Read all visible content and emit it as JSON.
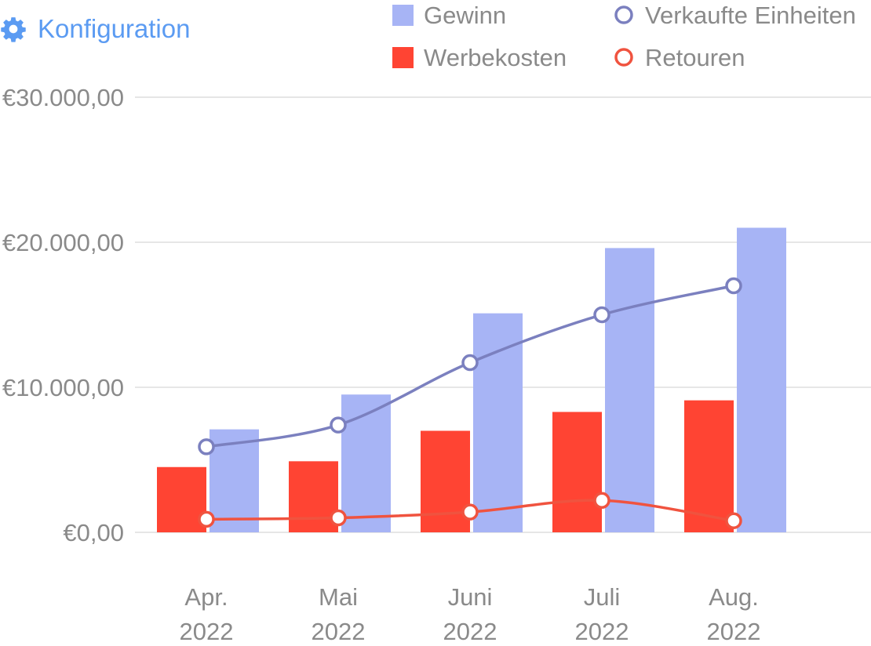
{
  "toolbar": {
    "config_label": "Konfiguration",
    "config_icon": "gear-icon",
    "accent_color": "#5b9bf2"
  },
  "chart_data": {
    "type": "bar",
    "categories": [
      [
        "Apr.",
        "2022"
      ],
      [
        "Mai",
        "2022"
      ],
      [
        "Juni",
        "2022"
      ],
      [
        "Juli",
        "2022"
      ],
      [
        "Aug.",
        "2022"
      ]
    ],
    "ylim": [
      0,
      30000
    ],
    "y_ticks": [
      {
        "value": 0,
        "label": "€0,00"
      },
      {
        "value": 10000,
        "label": "€10.000,00"
      },
      {
        "value": 20000,
        "label": "€20.000,00"
      },
      {
        "value": 30000,
        "label": "€30.000,00"
      }
    ],
    "grid": true,
    "legend_position": "top-right",
    "series": [
      {
        "name": "Werbekosten",
        "kind": "bar",
        "color": "#ff4433",
        "values": [
          4500,
          4900,
          7000,
          8300,
          9100
        ]
      },
      {
        "name": "Gewinn",
        "kind": "bar",
        "color": "#a7b4f5",
        "values": [
          7100,
          9500,
          15100,
          19600,
          21000
        ]
      },
      {
        "name": "Verkaufte Einheiten",
        "kind": "line",
        "color": "#7b80bf",
        "values": [
          5900,
          7400,
          11700,
          15000,
          17000
        ]
      },
      {
        "name": "Retouren",
        "kind": "line",
        "color": "#f0533f",
        "values": [
          900,
          1000,
          1400,
          2200,
          800
        ]
      }
    ],
    "legend": [
      {
        "label": "Gewinn",
        "marker": "square",
        "color": "#a7b4f5"
      },
      {
        "label": "Verkaufte Einheiten",
        "marker": "circle",
        "color": "#7b80bf"
      },
      {
        "label": "Werbekosten",
        "marker": "square",
        "color": "#ff4433"
      },
      {
        "label": "Retouren",
        "marker": "circle",
        "color": "#f0533f"
      }
    ],
    "text_color": "#8a8a8a",
    "grid_color": "#e6e6e6"
  }
}
